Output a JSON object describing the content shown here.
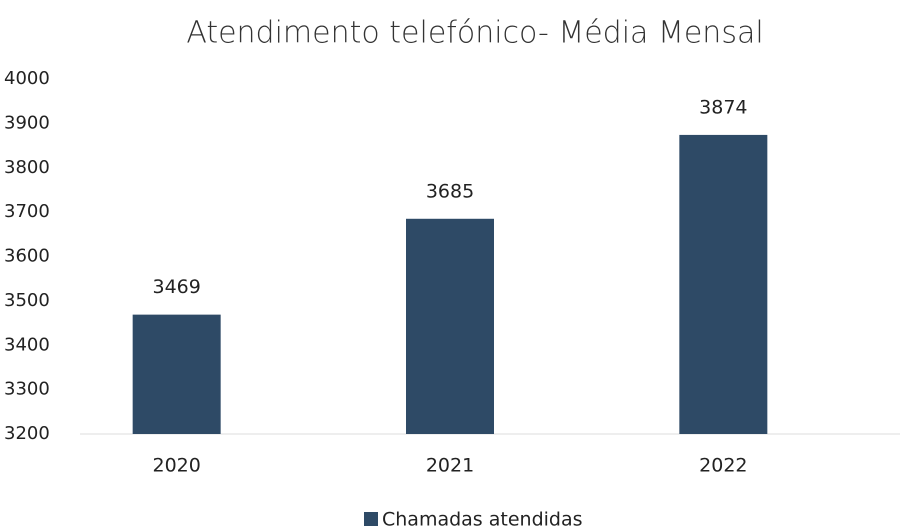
{
  "chart_data": {
    "type": "bar",
    "title": "Atendimento telefónico- Média Mensal",
    "categories": [
      "2020",
      "2021",
      "2022"
    ],
    "series": [
      {
        "name": "Chamadas atendidas",
        "color": "#2e4a66",
        "values": [
          3469,
          3685,
          3874
        ]
      }
    ],
    "ylim": [
      3200,
      4000
    ],
    "yticks": [
      3200,
      3300,
      3400,
      3500,
      3600,
      3700,
      3800,
      3900,
      4000
    ],
    "legend": "bottom"
  }
}
